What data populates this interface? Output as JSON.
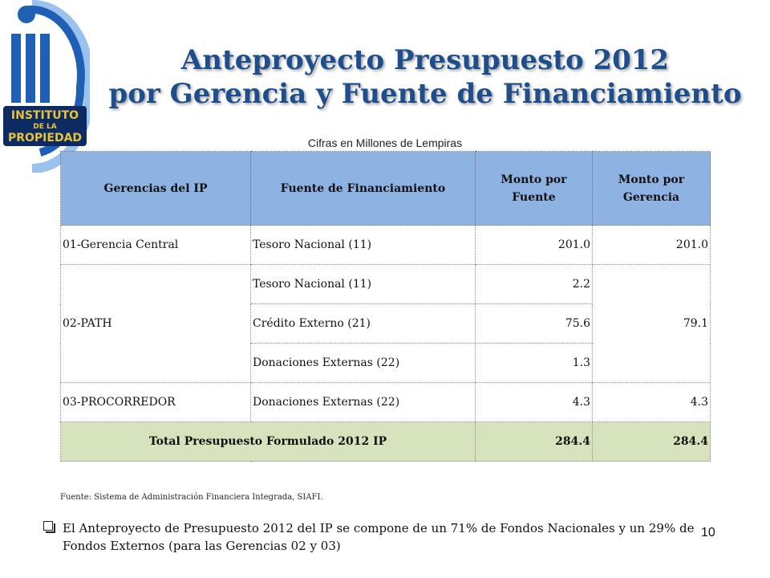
{
  "logo": {
    "line1": "INSTITUTO",
    "line2": "DE LA",
    "line3": "PROPIEDAD",
    "colors": {
      "blue": "#1f5fb4",
      "light_blue": "#6fa8e8",
      "gold": "#e8c23a",
      "navy": "#0d2b63"
    }
  },
  "title": {
    "line1": "Anteproyecto Presupuesto 2012",
    "line2": "por Gerencia y Fuente de Financiamiento"
  },
  "subtitle": "Cifras en Millones de Lempiras",
  "table": {
    "headers": {
      "gerencia": "Gerencias del IP",
      "fuente": "Fuente de Financiamiento",
      "monto_fuente": "Monto por Fuente",
      "monto_gerencia": "Monto por Gerencia"
    },
    "rows": [
      {
        "gerencia": "01-Gerencia Central",
        "fuente": "Tesoro Nacional (11)",
        "monto_fuente": "201.0",
        "monto_gerencia": "201.0"
      },
      {
        "gerencia": "02-PATH",
        "fuente": "Tesoro Nacional (11)",
        "monto_fuente": "2.2",
        "monto_gerencia": "79.1"
      },
      {
        "fuente": "Crédito Externo (21)",
        "monto_fuente": "75.6"
      },
      {
        "fuente": "Donaciones Externas (22)",
        "monto_fuente": "1.3"
      },
      {
        "gerencia": "03-PROCORREDOR",
        "fuente": "Donaciones Externas (22)",
        "monto_fuente": "4.3",
        "monto_gerencia": "4.3"
      }
    ],
    "total": {
      "label": "Total Presupuesto Formulado 2012 IP",
      "monto_fuente": "284.4",
      "monto_gerencia": "284.4"
    },
    "colors": {
      "header_bg": "#8eb3e3",
      "total_bg": "#d7e3bc"
    }
  },
  "source": "Fuente: Sistema de Administración Financiera Integrada, SIAFI.",
  "note": "El Anteproyecto de Presupuesto 2012 del IP se compone de un 71% de Fondos Nacionales y un 29% de Fondos Externos (para las Gerencias 02 y 03)",
  "page_number": "10",
  "colors": {
    "title": "#1f4e8c"
  }
}
